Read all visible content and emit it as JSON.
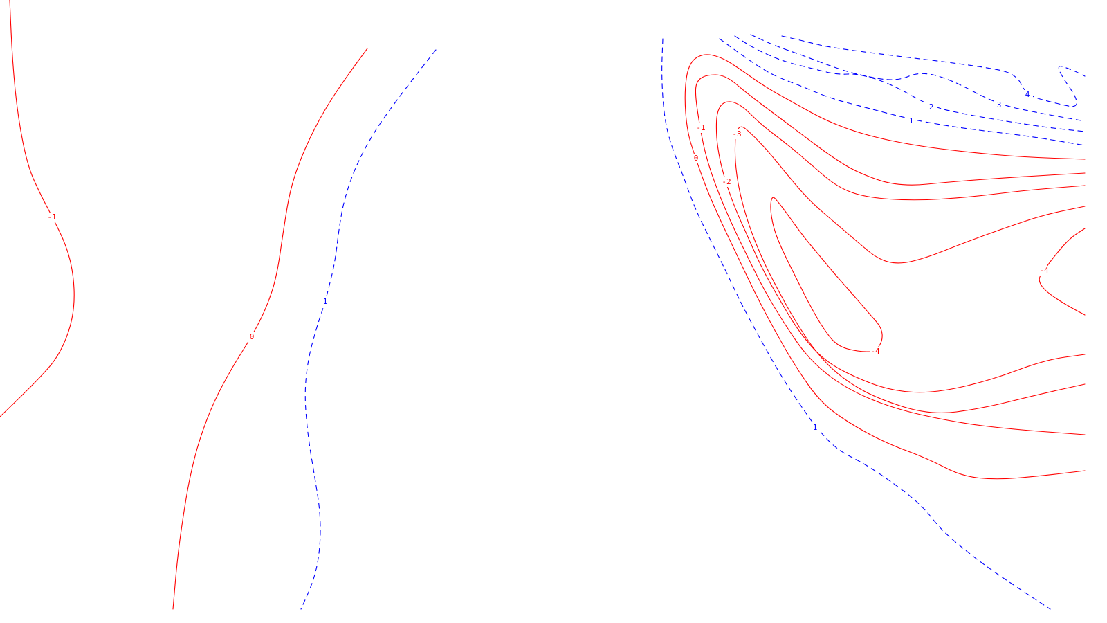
{
  "chart_data": {
    "type": "contour",
    "style": {
      "negative_and_zero_color": "#ff0000",
      "positive_color": "#0000ff",
      "positive_dash": "dashed",
      "background": "#ffffff"
    },
    "contours": [
      {
        "id": "left-neg1",
        "level": "-1"
      },
      {
        "id": "left-zero",
        "level": "0"
      },
      {
        "id": "left-pos1",
        "level": "1"
      },
      {
        "id": "right-pos1-outer",
        "level": "1"
      },
      {
        "id": "right-zero",
        "level": "0"
      },
      {
        "id": "right-neg1",
        "level": "-1"
      },
      {
        "id": "right-neg2",
        "level": "-2"
      },
      {
        "id": "right-neg3",
        "level": "-3"
      },
      {
        "id": "right-neg4-lower",
        "level": "-4"
      },
      {
        "id": "right-neg4-right",
        "level": "-4"
      },
      {
        "id": "top-pos1",
        "level": "1"
      },
      {
        "id": "top-pos2",
        "level": "2"
      },
      {
        "id": "top-pos3",
        "level": "3"
      },
      {
        "id": "top-pos4",
        "level": "4"
      }
    ],
    "labels": [
      {
        "contour": "left-neg1",
        "text": "-1"
      },
      {
        "contour": "left-zero",
        "text": "0"
      },
      {
        "contour": "left-pos1",
        "text": "1"
      },
      {
        "contour": "right-pos1-outer",
        "text": "1"
      },
      {
        "contour": "right-zero",
        "text": "0"
      },
      {
        "contour": "right-neg1",
        "text": "-1"
      },
      {
        "contour": "right-neg2",
        "text": "-2"
      },
      {
        "contour": "right-neg3",
        "text": "-3"
      },
      {
        "contour": "right-neg4-lower",
        "text": "-4"
      },
      {
        "contour": "right-neg4-right",
        "text": "-4"
      },
      {
        "contour": "top-pos1",
        "text": "1"
      },
      {
        "contour": "top-pos2",
        "text": "2"
      },
      {
        "contour": "top-pos3",
        "text": "3"
      },
      {
        "contour": "top-pos4",
        "text": "4"
      }
    ]
  }
}
